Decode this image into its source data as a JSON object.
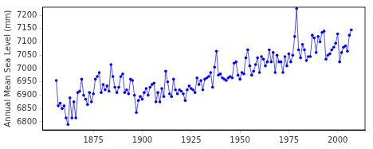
{
  "chart_data": {
    "type": "line",
    "y_label": "Annual Mean Sea Level (mm)",
    "color": "#0000ff",
    "marker": "circle",
    "grid": false,
    "x": [
      1856,
      1857,
      1858,
      1859,
      1860,
      1861,
      1862,
      1863,
      1864,
      1865,
      1866,
      1867,
      1868,
      1869,
      1870,
      1871,
      1872,
      1873,
      1874,
      1875,
      1876,
      1877,
      1878,
      1879,
      1880,
      1881,
      1882,
      1883,
      1884,
      1885,
      1886,
      1887,
      1888,
      1889,
      1890,
      1891,
      1892,
      1893,
      1894,
      1895,
      1896,
      1897,
      1898,
      1899,
      1900,
      1901,
      1902,
      1903,
      1904,
      1905,
      1906,
      1907,
      1908,
      1909,
      1910,
      1911,
      1912,
      1913,
      1914,
      1915,
      1916,
      1917,
      1918,
      1919,
      1920,
      1921,
      1922,
      1923,
      1924,
      1925,
      1926,
      1927,
      1928,
      1929,
      1930,
      1931,
      1932,
      1933,
      1934,
      1935,
      1936,
      1937,
      1938,
      1939,
      1940,
      1941,
      1942,
      1943,
      1944,
      1945,
      1946,
      1947,
      1948,
      1949,
      1950,
      1951,
      1952,
      1953,
      1954,
      1955,
      1956,
      1957,
      1958,
      1959,
      1960,
      1961,
      1962,
      1963,
      1964,
      1965,
      1966,
      1967,
      1968,
      1969,
      1970,
      1971,
      1972,
      1973,
      1974,
      1975,
      1976,
      1977,
      1978,
      1979,
      1980,
      1981,
      1982,
      1983,
      1984,
      1985,
      1986,
      1987,
      1988,
      1989,
      1990,
      1991,
      1992,
      1993,
      1994,
      1995,
      1996,
      1997,
      1998,
      1999,
      2000,
      2001,
      2002,
      2003,
      2004,
      2005,
      2006,
      2007
    ],
    "values": [
      6955,
      6860,
      6870,
      6850,
      6860,
      6815,
      6790,
      6890,
      6815,
      6875,
      6815,
      6910,
      6915,
      6960,
      6900,
      6885,
      6865,
      6910,
      6875,
      6905,
      6960,
      6970,
      6985,
      6910,
      6940,
      6920,
      6935,
      6915,
      7015,
      6970,
      6930,
      6910,
      6930,
      6970,
      6980,
      6910,
      6920,
      6905,
      6960,
      6955,
      6900,
      6835,
      6880,
      6895,
      6885,
      6910,
      6925,
      6900,
      6930,
      6940,
      6945,
      6875,
      6910,
      6875,
      6925,
      6895,
      6990,
      6950,
      6905,
      6895,
      6960,
      6920,
      6905,
      6920,
      6915,
      6905,
      6880,
      6920,
      6935,
      6925,
      6920,
      6910,
      6965,
      6940,
      6955,
      6920,
      6960,
      6965,
      6970,
      6985,
      6930,
      7005,
      7065,
      6975,
      6980,
      6965,
      6960,
      6955,
      6965,
      6970,
      6965,
      7020,
      7025,
      6975,
      6960,
      6985,
      6980,
      7040,
      7070,
      7010,
      6975,
      6990,
      7015,
      7040,
      6985,
      7045,
      7035,
      7010,
      7025,
      7070,
      7025,
      7060,
      6985,
      7050,
      7025,
      7025,
      6985,
      7045,
      7010,
      7055,
      7025,
      7050,
      7120,
      7225,
      7070,
      7040,
      7090,
      7070,
      7030,
      7045,
      7045,
      7125,
      7115,
      7060,
      7120,
      7100,
      7135,
      7140,
      7035,
      7050,
      7055,
      7070,
      7080,
      7095,
      7130,
      7025,
      7060,
      7080,
      7085,
      7065,
      7125,
      7145
    ],
    "xlim": [
      1849,
      2014
    ],
    "xticks": [
      1875,
      1900,
      1925,
      1950,
      1975,
      2000
    ],
    "ylim": [
      6770,
      7230
    ],
    "yticks": [
      6800,
      6850,
      6900,
      6950,
      7000,
      7050,
      7100,
      7150,
      7200
    ]
  }
}
